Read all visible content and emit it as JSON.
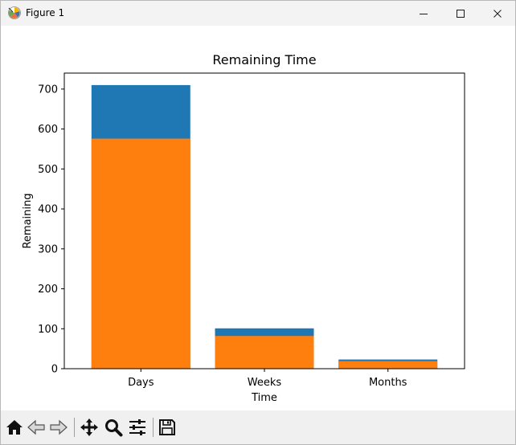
{
  "window": {
    "title": "Figure 1",
    "minimize_icon": "minimize-icon",
    "maximize_icon": "maximize-icon",
    "close_icon": "close-icon"
  },
  "toolbar": {
    "tools": [
      {
        "name": "home-icon"
      },
      {
        "name": "back-arrow-icon"
      },
      {
        "name": "forward-arrow-icon"
      },
      {
        "name": "pan-icon"
      },
      {
        "name": "zoom-icon"
      },
      {
        "name": "subplots-config-icon"
      },
      {
        "name": "save-icon"
      }
    ]
  },
  "chart_data": {
    "type": "bar",
    "title": "Remaining Time",
    "xlabel": "Time",
    "ylabel": "Remaining",
    "categories": [
      "Days",
      "Weeks",
      "Months"
    ],
    "ylim": [
      0,
      740
    ],
    "yticks": [
      0,
      100,
      200,
      300,
      400,
      500,
      600,
      700
    ],
    "series": [
      {
        "values": [
          710,
          101,
          23
        ],
        "color": "#1f77b4"
      },
      {
        "values": [
          576,
          82,
          19
        ],
        "color": "#ff7f0e"
      }
    ]
  }
}
